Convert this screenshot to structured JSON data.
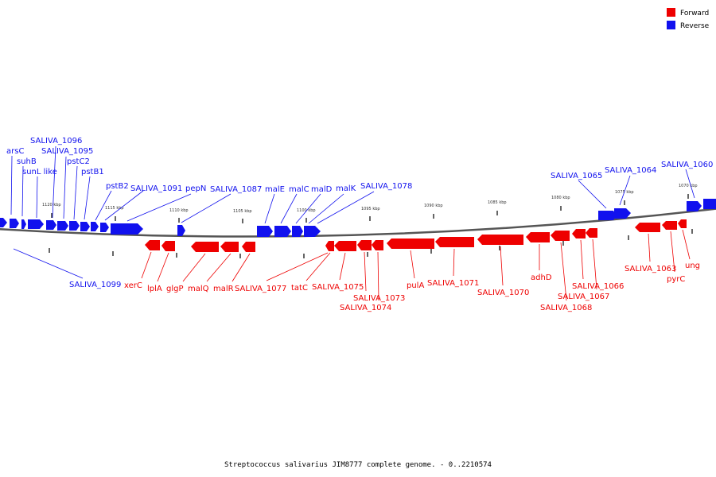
{
  "caption": "Streptococcus salivarius JIM8777 complete genome. - 0..2210574",
  "legend": {
    "forward": "Forward",
    "reverse": "Reverse",
    "forward_color": "#ee0000",
    "reverse_color": "#1111ee"
  },
  "tick_labels": [
    "1120 kbp",
    "1115 kbp",
    "1110 kbp",
    "1105 kbp",
    "1100 kbp",
    "1095 kbp",
    "1090 kbp",
    "1085 kbp",
    "1080 kbp",
    "1075 kbp",
    "1070 kbp"
  ],
  "reverse_genes": [
    "arsC",
    "suhB",
    "sunL like",
    "SALIVA_1096",
    "SALIVA_1095",
    "pstC2",
    "pstB1",
    "pstB2",
    "SALIVA_1091",
    "pepN",
    "SALIVA_1087",
    "malE",
    "malC",
    "malD",
    "malK",
    "SALIVA_1078",
    "SALIVA_1065",
    "SALIVA_1064",
    "SALIVA_1060",
    "SALIVA_1099"
  ],
  "forward_genes": [
    "xerC",
    "lplA",
    "glgP",
    "malQ",
    "malR",
    "SALIVA_1077",
    "tatC",
    "SALIVA_1075",
    "SALIVA_1073",
    "SALIVA_1074",
    "pulA",
    "SALIVA_1071",
    "SALIVA_1070",
    "adhD",
    "SALIVA_1066",
    "SALIVA_1067",
    "SALIVA_1068",
    "SALIVA_1063",
    "pyrC",
    "ung"
  ]
}
